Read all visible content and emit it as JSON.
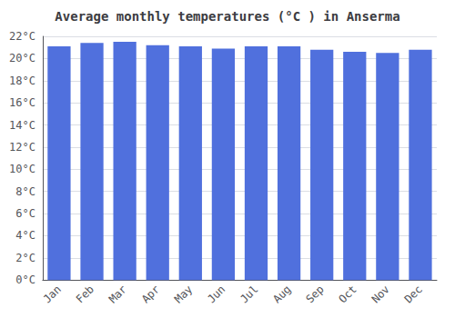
{
  "chart_data": {
    "type": "bar",
    "title": "Average monthly temperatures (°C ) in Anserma",
    "categories": [
      "Jan",
      "Feb",
      "Mar",
      "Apr",
      "May",
      "Jun",
      "Jul",
      "Aug",
      "Sep",
      "Oct",
      "Nov",
      "Dec"
    ],
    "values": [
      21.1,
      21.4,
      21.5,
      21.2,
      21.1,
      20.9,
      21.1,
      21.1,
      20.8,
      20.6,
      20.5,
      20.8
    ],
    "ylim": [
      0,
      22
    ],
    "yticks": [
      {
        "value": 0,
        "label": "0°C"
      },
      {
        "value": 2,
        "label": "2°C"
      },
      {
        "value": 4,
        "label": "4°C"
      },
      {
        "value": 6,
        "label": "6°C"
      },
      {
        "value": 8,
        "label": "8°C"
      },
      {
        "value": 10,
        "label": "10°C"
      },
      {
        "value": 12,
        "label": "12°C"
      },
      {
        "value": 14,
        "label": "14°C"
      },
      {
        "value": 16,
        "label": "16°C"
      },
      {
        "value": 18,
        "label": "18°C"
      },
      {
        "value": 20,
        "label": "20°C"
      },
      {
        "value": 22,
        "label": "22°C"
      }
    ],
    "grid": true
  }
}
